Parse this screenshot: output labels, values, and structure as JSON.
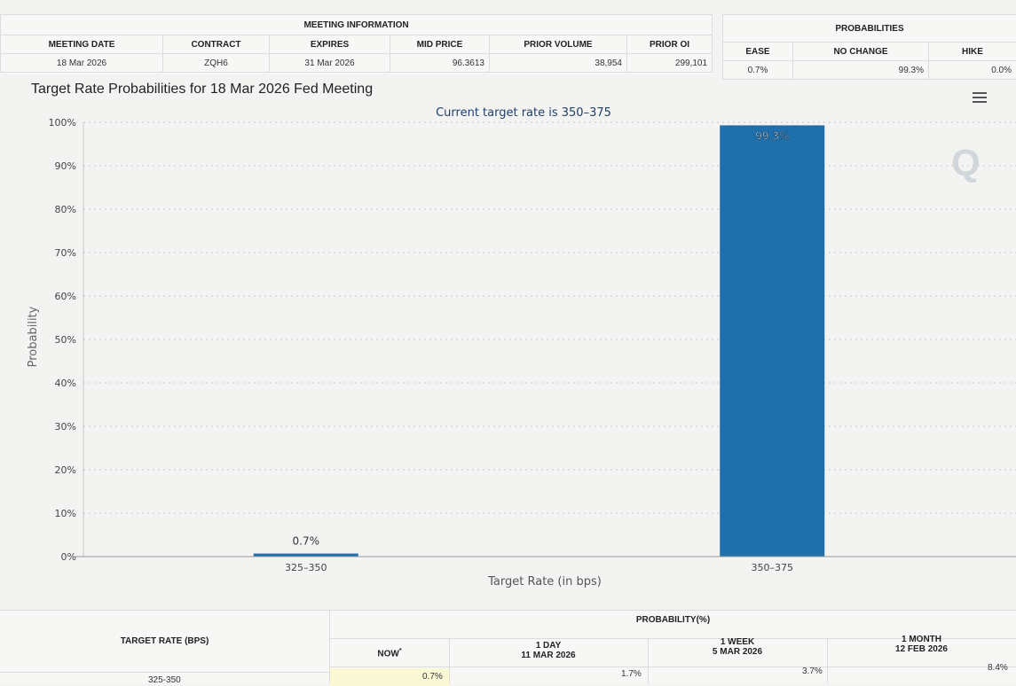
{
  "meeting_info": {
    "caption": "MEETING INFORMATION",
    "headers": [
      "MEETING DATE",
      "CONTRACT",
      "EXPIRES",
      "MID PRICE",
      "PRIOR VOLUME",
      "PRIOR OI"
    ],
    "row": [
      "18 Mar 2026",
      "ZQH6",
      "31 Mar 2026",
      "96.3613",
      "38,954",
      "299,101"
    ]
  },
  "probabilities": {
    "caption": "PROBABILITIES",
    "headers": [
      "EASE",
      "NO CHANGE",
      "HIKE"
    ],
    "row": [
      "0.7%",
      "99.3%",
      "0.0%"
    ]
  },
  "chart_title": "Target Rate Probabilities for 18 Mar 2026 Fed Meeting",
  "watermark": "Q",
  "chart_data": {
    "type": "bar",
    "title": "Target Rate Probabilities for 18 Mar 2026 Fed Meeting",
    "subtitle": "Current target rate is 350–375",
    "xlabel": "Target Rate (in bps)",
    "ylabel": "Probability",
    "categories": [
      "325–350",
      "350–375"
    ],
    "values": [
      0.7,
      99.3
    ],
    "data_labels": [
      "0.7%",
      "99.3%"
    ],
    "ylim": [
      0,
      100
    ],
    "y_ticks": [
      0,
      10,
      20,
      30,
      40,
      50,
      60,
      70,
      80,
      90,
      100
    ],
    "y_tick_labels": [
      "0%",
      "10%",
      "20%",
      "30%",
      "40%",
      "50%",
      "60%",
      "70%",
      "80%",
      "90%",
      "100%"
    ],
    "grid": true,
    "bar_color": "#1f6fad"
  },
  "bottom_table": {
    "target_rate_header": "TARGET RATE (BPS)",
    "probability_header": "PROBABILITY(%)",
    "columns": [
      {
        "title": "NOW",
        "marker": "*",
        "date": ""
      },
      {
        "title": "1 DAY",
        "date": "11 MAR 2026"
      },
      {
        "title": "1 WEEK",
        "date": "5 MAR 2026"
      },
      {
        "title": "1 MONTH",
        "date": "12 FEB 2026"
      }
    ],
    "row": {
      "rate": "325-350",
      "values": [
        "0.7%",
        "1.7%",
        "3.7%",
        "8.4%"
      ]
    }
  }
}
